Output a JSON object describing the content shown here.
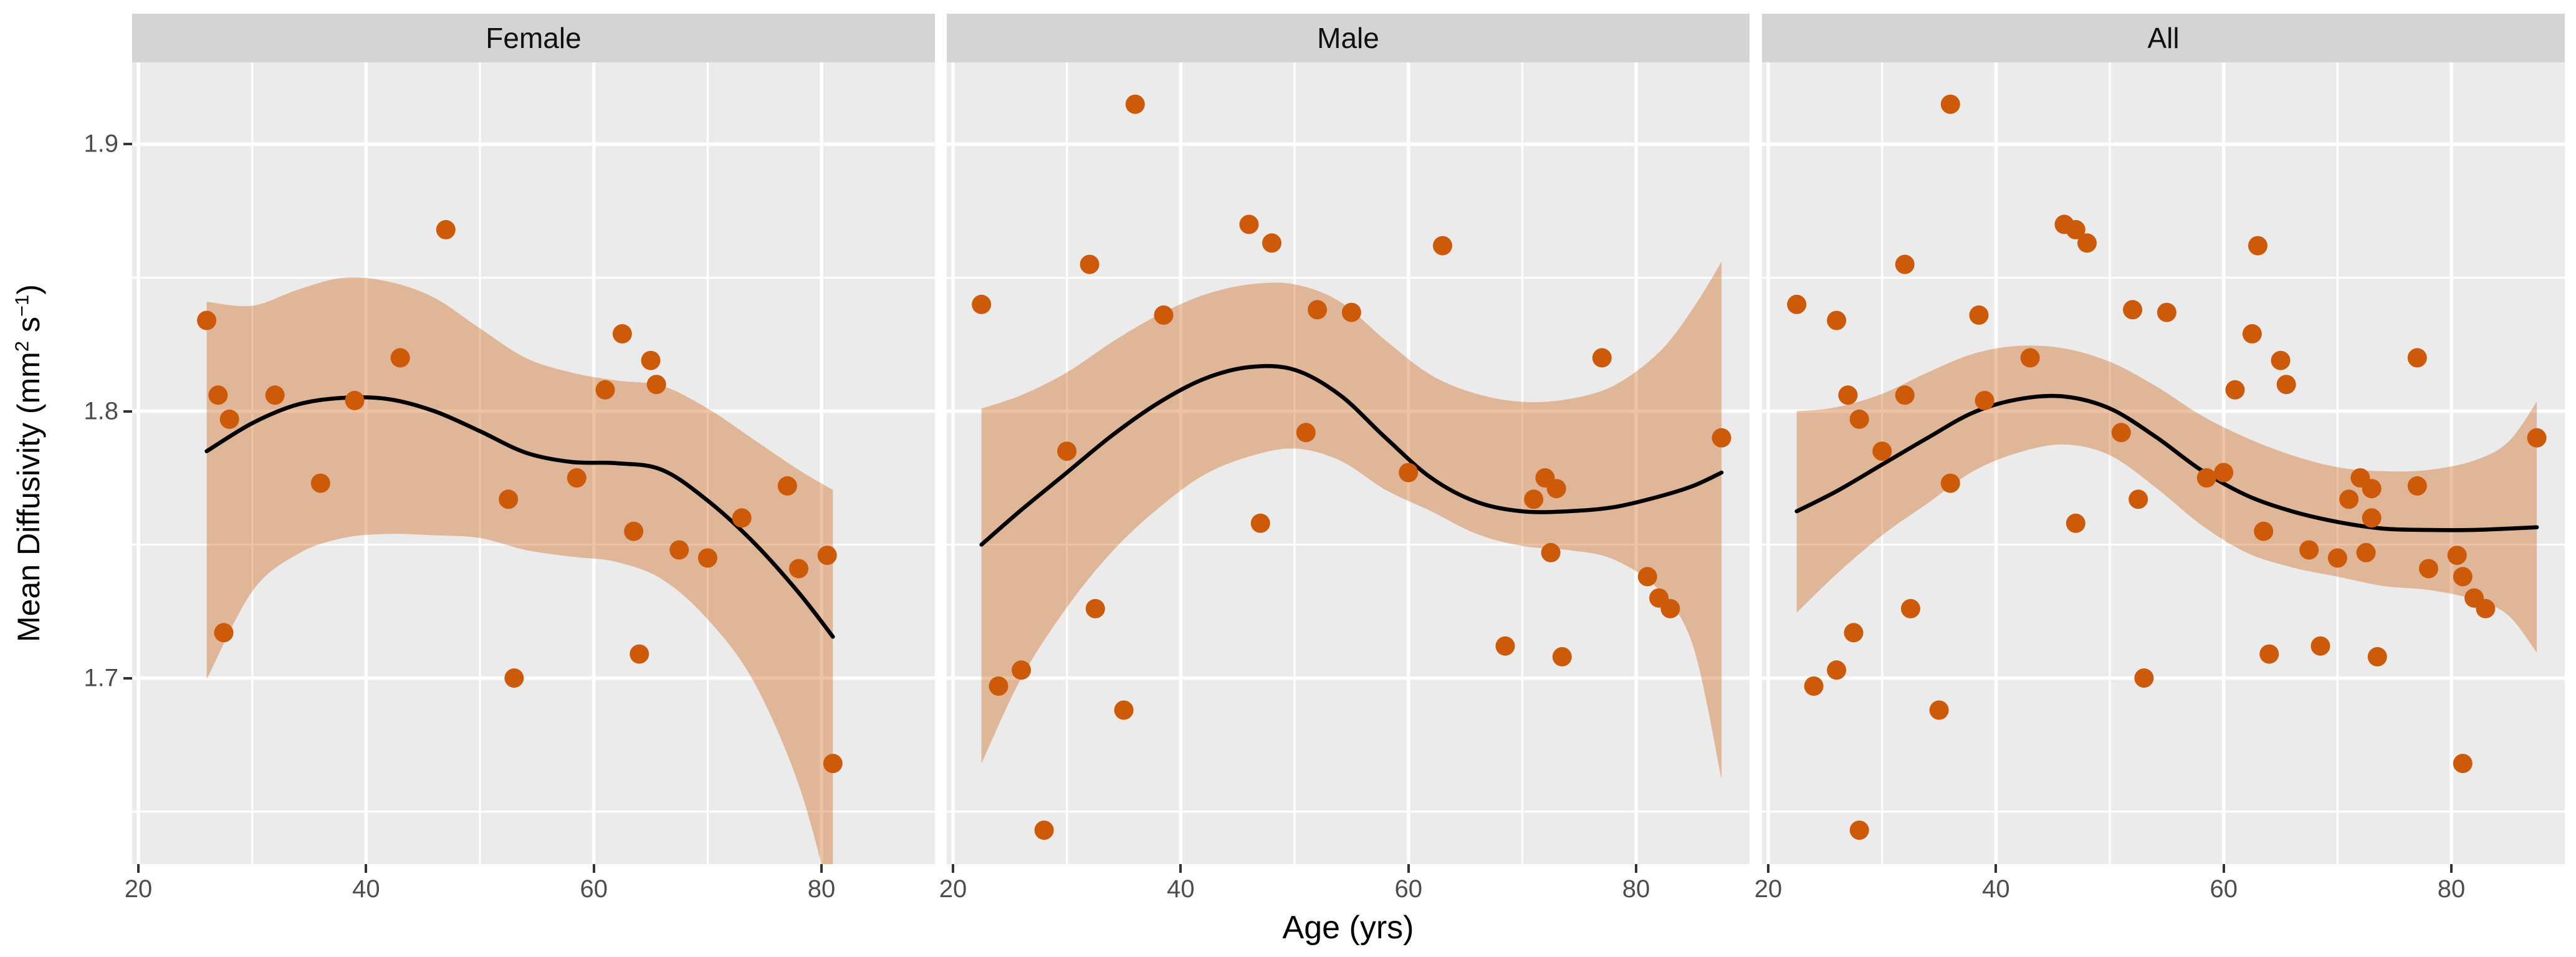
{
  "chart_data": {
    "type": "scatter",
    "title": "",
    "xlabel": "Age (yrs)",
    "ylabel": {
      "pre": "Mean Diffusivity (mm",
      "sup1": "2",
      "mid": " s",
      "sup2": "−1",
      "post": ")"
    },
    "x_ticks": [
      20,
      40,
      60,
      80
    ],
    "x_minor": [
      30,
      50,
      70
    ],
    "y_ticks": [
      "1.9",
      "1.8",
      "1.7"
    ],
    "y_tick_values": [
      1.9,
      1.8,
      1.7
    ],
    "y_minor": [
      1.85,
      1.75,
      1.65
    ],
    "x_domain": [
      19.45,
      89.96
    ],
    "y_domain": [
      1.6303,
      1.9307
    ],
    "grid": "on",
    "legend": "none",
    "smooth_method": "loess",
    "facets": [
      {
        "label": "Female",
        "points": [
          [
            26,
            1.834
          ],
          [
            27,
            1.806
          ],
          [
            27.5,
            1.717
          ],
          [
            28,
            1.797
          ],
          [
            32,
            1.806
          ],
          [
            36,
            1.773
          ],
          [
            39,
            1.804
          ],
          [
            43,
            1.82
          ],
          [
            47,
            1.868
          ],
          [
            52.5,
            1.767
          ],
          [
            53,
            1.7
          ],
          [
            58.5,
            1.775
          ],
          [
            61,
            1.808
          ],
          [
            62.5,
            1.829
          ],
          [
            63.5,
            1.755
          ],
          [
            64,
            1.709
          ],
          [
            65,
            1.819
          ],
          [
            65.5,
            1.81
          ],
          [
            67.5,
            1.748
          ],
          [
            70,
            1.745
          ],
          [
            73,
            1.76
          ],
          [
            77,
            1.772
          ],
          [
            78,
            1.741
          ],
          [
            80.5,
            1.746
          ],
          [
            81,
            1.668
          ]
        ],
        "smooth": {
          "age": [
            26,
            30,
            34,
            38,
            42,
            46,
            50,
            54,
            58,
            62,
            66,
            70,
            74,
            78,
            81
          ],
          "fit": [
            1.785,
            1.7955,
            1.8025,
            1.805,
            1.8045,
            1.8,
            1.7925,
            1.7845,
            1.781,
            1.7805,
            1.778,
            1.7665,
            1.751,
            1.732,
            1.7155
          ],
          "upper": [
            1.841,
            1.8395,
            1.8455,
            1.85,
            1.8485,
            1.8425,
            1.831,
            1.82,
            1.8145,
            1.8115,
            1.8095,
            1.801,
            1.7895,
            1.778,
            1.7705
          ],
          "lower": [
            1.6995,
            1.7325,
            1.7465,
            1.7525,
            1.754,
            1.7535,
            1.7525,
            1.748,
            1.7455,
            1.7435,
            1.737,
            1.722,
            1.699,
            1.66,
            1.6135
          ]
        }
      },
      {
        "label": "Male",
        "points": [
          [
            22.5,
            1.84
          ],
          [
            24,
            1.697
          ],
          [
            26,
            1.703
          ],
          [
            28,
            1.643
          ],
          [
            30,
            1.785
          ],
          [
            32,
            1.855
          ],
          [
            32.5,
            1.726
          ],
          [
            35,
            1.688
          ],
          [
            36,
            1.915
          ],
          [
            38.5,
            1.836
          ],
          [
            46,
            1.87
          ],
          [
            47,
            1.758
          ],
          [
            48,
            1.863
          ],
          [
            51,
            1.792
          ],
          [
            52,
            1.838
          ],
          [
            55,
            1.837
          ],
          [
            60,
            1.777
          ],
          [
            63,
            1.862
          ],
          [
            68.5,
            1.712
          ],
          [
            71,
            1.767
          ],
          [
            72,
            1.775
          ],
          [
            72.5,
            1.747
          ],
          [
            73,
            1.771
          ],
          [
            73.5,
            1.708
          ],
          [
            77,
            1.82
          ],
          [
            81,
            1.738
          ],
          [
            82,
            1.73
          ],
          [
            83,
            1.726
          ],
          [
            87.5,
            1.79
          ]
        ],
        "smooth": {
          "age": [
            22.5,
            26,
            30,
            34,
            38,
            42,
            46,
            50,
            54,
            58,
            62,
            66,
            70,
            74,
            78,
            82,
            85,
            87.5
          ],
          "fit": [
            1.75,
            1.763,
            1.777,
            1.791,
            1.803,
            1.812,
            1.8165,
            1.8155,
            1.806,
            1.79,
            1.775,
            1.766,
            1.7625,
            1.7625,
            1.764,
            1.768,
            1.772,
            1.777
          ],
          "upper": [
            1.801,
            1.806,
            1.8145,
            1.826,
            1.836,
            1.8435,
            1.8475,
            1.8475,
            1.841,
            1.8265,
            1.8135,
            1.8065,
            1.8035,
            1.8045,
            1.8095,
            1.822,
            1.8385,
            1.856
          ],
          "lower": [
            1.668,
            1.7,
            1.7265,
            1.7475,
            1.7635,
            1.776,
            1.783,
            1.786,
            1.7815,
            1.7705,
            1.7625,
            1.754,
            1.7495,
            1.748,
            1.7445,
            1.733,
            1.712,
            1.662
          ]
        }
      },
      {
        "label": "All",
        "points": [
          [
            26,
            1.834
          ],
          [
            27,
            1.806
          ],
          [
            27.5,
            1.717
          ],
          [
            28,
            1.797
          ],
          [
            32,
            1.806
          ],
          [
            36,
            1.773
          ],
          [
            39,
            1.804
          ],
          [
            43,
            1.82
          ],
          [
            47,
            1.868
          ],
          [
            52.5,
            1.767
          ],
          [
            53,
            1.7
          ],
          [
            58.5,
            1.775
          ],
          [
            61,
            1.808
          ],
          [
            62.5,
            1.829
          ],
          [
            63.5,
            1.755
          ],
          [
            64,
            1.709
          ],
          [
            65,
            1.819
          ],
          [
            65.5,
            1.81
          ],
          [
            67.5,
            1.748
          ],
          [
            70,
            1.745
          ],
          [
            73,
            1.76
          ],
          [
            77,
            1.772
          ],
          [
            78,
            1.741
          ],
          [
            80.5,
            1.746
          ],
          [
            81,
            1.668
          ],
          [
            22.5,
            1.84
          ],
          [
            24,
            1.697
          ],
          [
            26,
            1.703
          ],
          [
            28,
            1.643
          ],
          [
            30,
            1.785
          ],
          [
            32,
            1.855
          ],
          [
            32.5,
            1.726
          ],
          [
            35,
            1.688
          ],
          [
            36,
            1.915
          ],
          [
            38.5,
            1.836
          ],
          [
            46,
            1.87
          ],
          [
            47,
            1.758
          ],
          [
            48,
            1.863
          ],
          [
            51,
            1.792
          ],
          [
            52,
            1.838
          ],
          [
            55,
            1.837
          ],
          [
            60,
            1.777
          ],
          [
            63,
            1.862
          ],
          [
            68.5,
            1.712
          ],
          [
            71,
            1.767
          ],
          [
            72,
            1.775
          ],
          [
            72.5,
            1.747
          ],
          [
            73,
            1.771
          ],
          [
            73.5,
            1.708
          ],
          [
            77,
            1.82
          ],
          [
            81,
            1.738
          ],
          [
            82,
            1.73
          ],
          [
            83,
            1.726
          ],
          [
            87.5,
            1.79
          ]
        ],
        "smooth": {
          "age": [
            22.5,
            26,
            30,
            34,
            38,
            42,
            46,
            50,
            54,
            58,
            62,
            66,
            70,
            74,
            78,
            82,
            85,
            87.5
          ],
          "fit": [
            1.7625,
            1.77,
            1.78,
            1.79,
            1.7995,
            1.8045,
            1.8055,
            1.801,
            1.7905,
            1.778,
            1.7685,
            1.7625,
            1.7585,
            1.756,
            1.7555,
            1.7555,
            1.756,
            1.7565
          ],
          "upper": [
            1.8,
            1.8015,
            1.8065,
            1.8145,
            1.8215,
            1.8245,
            1.8235,
            1.8185,
            1.8095,
            1.7985,
            1.79,
            1.7835,
            1.779,
            1.7775,
            1.778,
            1.7815,
            1.7885,
            1.8035
          ],
          "lower": [
            1.7245,
            1.739,
            1.7535,
            1.7655,
            1.7775,
            1.7845,
            1.7875,
            1.7835,
            1.7715,
            1.7575,
            1.747,
            1.7415,
            1.738,
            1.7345,
            1.733,
            1.7295,
            1.7235,
            1.7095
          ]
        }
      }
    ]
  },
  "colors": {
    "point": "#CC5A08",
    "smooth_line": "#000000",
    "ribbon": "rgba(206,92,10,0.37)",
    "panel_background": "#EBEBEB",
    "gridline": "#FFFFFF",
    "strip_background": "#D4D4D4",
    "strip_text": "#111111",
    "tick_text": "#4D4D4D",
    "tick_mark": "#333333",
    "figure_background": "#FFFFFF"
  },
  "icons": {}
}
